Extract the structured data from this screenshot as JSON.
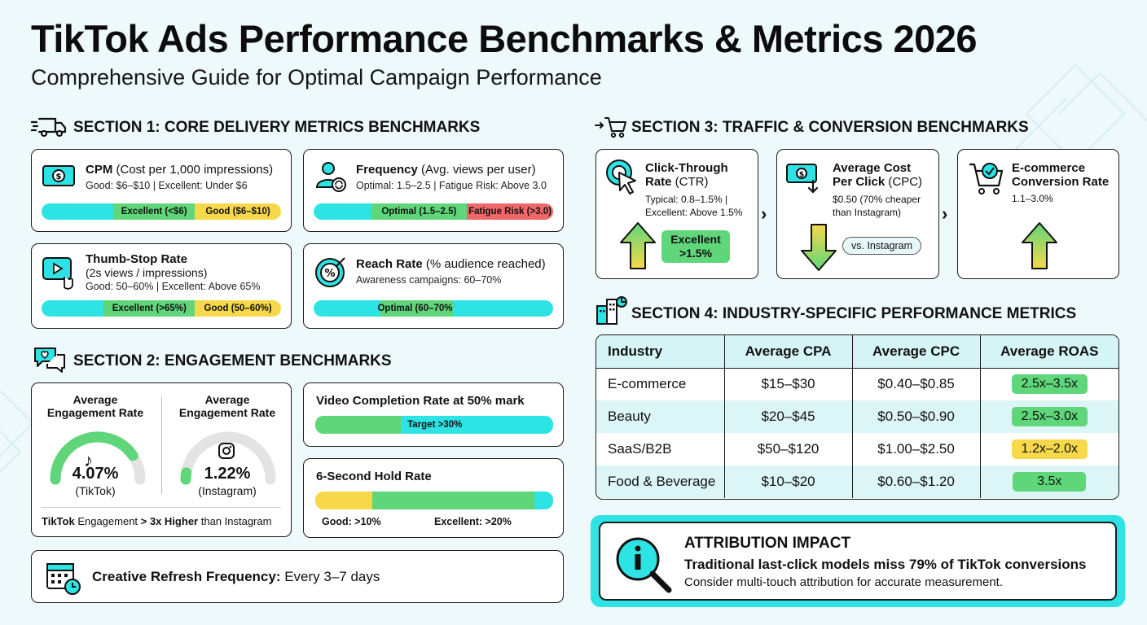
{
  "header": {
    "title": "TikTok Ads  Performance Benchmarks & Metrics 2026",
    "subtitle": "Comprehensive Guide for Optimal Campaign Performance"
  },
  "section1": {
    "title": "SECTION 1: CORE DELIVERY METRICS BENCHMARKS",
    "cpm": {
      "name": "CPM",
      "desc": "(Cost per 1,000 impressions)",
      "line": "Good: $6–$10 | Excellent: Under $6",
      "bar": [
        "Excellent (<$6)",
        "Good ($6–$10)"
      ]
    },
    "frequency": {
      "name": "Frequency",
      "desc": "(Avg. views per user)",
      "line": "Optimal: 1.5–2.5 | Fatigue Risk: Above 3.0",
      "bar": [
        "Optimal (1.5–2.5)",
        "Fatigue Risk (>3.0)"
      ]
    },
    "thumbstop": {
      "name": "Thumb-Stop Rate",
      "desc": "(2s views / impressions)",
      "line": "Good: 50–60% | Excellent: Above 65%",
      "bar": [
        "Excellent (>65%)",
        "Good (50–60%)"
      ]
    },
    "reach": {
      "name": "Reach Rate",
      "desc": "(% audience reached)",
      "line": "Awareness campaigns: 60–70%",
      "bar": [
        "Optimal (60–70%)"
      ]
    }
  },
  "section2": {
    "title": "SECTION 2: ENGAGEMENT BENCHMARKS",
    "gauges": [
      {
        "label": "Average Engagement Rate",
        "value": "4.07%",
        "platform": "(TikTok)",
        "fraction": 0.81
      },
      {
        "label": "Average Engagement Rate",
        "value": "1.22%",
        "platform": "(Instagram)",
        "fraction": 0.05
      }
    ],
    "compare": {
      "pre": "TikTok",
      "mid": " Engagement ",
      "strong": "> 3x Higher",
      "post": " than Instagram"
    },
    "video_completion": {
      "title": "Video Completion Rate at 50% mark",
      "bar": "Target >30%"
    },
    "hold": {
      "title": "6-Second Hold Rate",
      "good": "Good: >10%",
      "excellent": "Excellent: >20%"
    },
    "refresh": {
      "label": "Creative Refresh Frequency:",
      "value": " Every 3–7 days"
    }
  },
  "section3": {
    "title": "SECTION 3: TRAFFIC & CONVERSION BENCHMARKS",
    "ctr": {
      "name_line1": "Click-Through",
      "name_line2": "Rate",
      "abbr": " (CTR)",
      "line1": "Typical: 0.8–1.5% |",
      "line2": "Excellent: Above 1.5%",
      "badge": "Excellent >1.5%"
    },
    "cpc": {
      "name_line1": "Average Cost",
      "name_line2": "Per Click",
      "abbr": " (CPC)",
      "line1": "$0.50 (70% cheaper",
      "line2": "than Instagram)",
      "badge": "vs. Instagram"
    },
    "cvr": {
      "name_line1": "E-commerce",
      "name_line2": "Conversion Rate",
      "line1": "1.1–3.0%"
    }
  },
  "section4": {
    "title": "SECTION 4: INDUSTRY-SPECIFIC PERFORMANCE METRICS",
    "headers": [
      "Industry",
      "Average CPA",
      "Average CPC",
      "Average ROAS"
    ],
    "rows": [
      {
        "industry": "E-commerce",
        "cpa": "$15–$30",
        "cpc": "$0.40–$0.85",
        "roas": "2.5x–3.5x",
        "roas_color": "green"
      },
      {
        "industry": "Beauty",
        "cpa": "$20–$45",
        "cpc": "$0.50–$0.90",
        "roas": "2.5x–3.0x",
        "roas_color": "green"
      },
      {
        "industry": "SaaS/B2B",
        "cpa": "$50–$120",
        "cpc": "$1.00–$2.50",
        "roas": "1.2x–2.0x",
        "roas_color": "yellow"
      },
      {
        "industry": "Food & Beverage",
        "cpa": "$10–$20",
        "cpc": "$0.60–$1.20",
        "roas": "3.5x",
        "roas_color": "green"
      }
    ]
  },
  "attribution": {
    "title": "ATTRIBUTION IMPACT",
    "line1": "Traditional last-click models miss 79% of TikTok conversions",
    "line2": "Consider multi-touch attribution for accurate measurement."
  },
  "colors": {
    "cyan": "#2ee3e3",
    "green": "#5fd67a",
    "yellow": "#f6d84a",
    "red": "#f0676a"
  }
}
